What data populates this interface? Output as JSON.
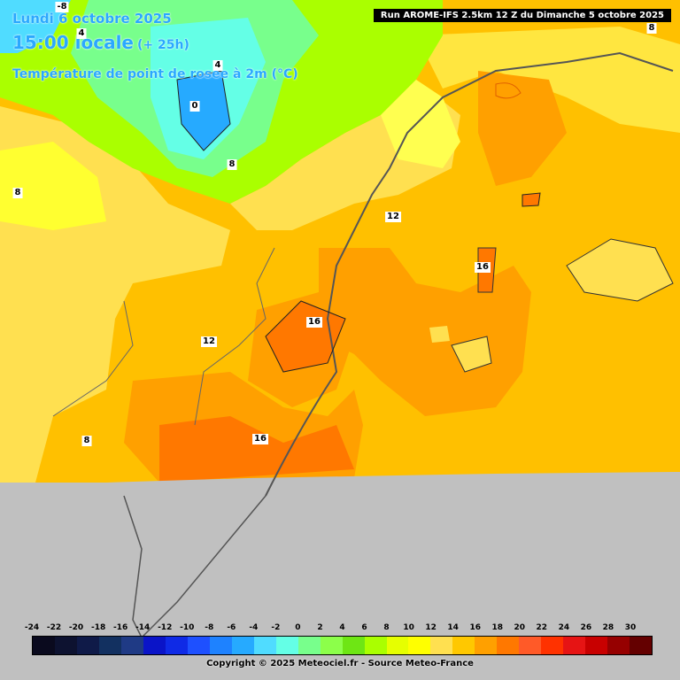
{
  "header": {
    "date": "Lundi 6 octobre 2025",
    "time": "15:00 locale",
    "lead": "(+ 25h)",
    "variable": "Température de point de rosée à 2m (°C)"
  },
  "run_info": "Run AROME-IFS 2.5km 12 Z du Dimanche 5 octobre 2025",
  "contour_labels": [
    "-8",
    "4",
    "4",
    "0",
    "8",
    "8",
    "8",
    "12",
    "12",
    "16",
    "16",
    "16",
    "8"
  ],
  "legend": {
    "ticks": [
      "-24",
      "-22",
      "-20",
      "-18",
      "-16",
      "-14",
      "-12",
      "-10",
      "-8",
      "-6",
      "-4",
      "-2",
      "0",
      "2",
      "4",
      "6",
      "8",
      "10",
      "12",
      "14",
      "16",
      "18",
      "20",
      "22",
      "24",
      "26",
      "28",
      "30"
    ],
    "colors": [
      "#0a0a1e",
      "#0d1230",
      "#0f1a48",
      "#123060",
      "#1f3a85",
      "#0a14c8",
      "#0f2ae6",
      "#1e50ff",
      "#1e82ff",
      "#26aaff",
      "#50dcff",
      "#64ffe6",
      "#78ff8c",
      "#8cff4a",
      "#6ee614",
      "#aaff00",
      "#e6ff00",
      "#ffff00",
      "#ffe050",
      "#ffc800",
      "#ffa000",
      "#ff7800",
      "#ff5a28",
      "#ff3200",
      "#e61414",
      "#c80000",
      "#960000",
      "#640000"
    ]
  },
  "copyright": "Copyright © 2025 Meteociel.fr - Source Meteo-France"
}
